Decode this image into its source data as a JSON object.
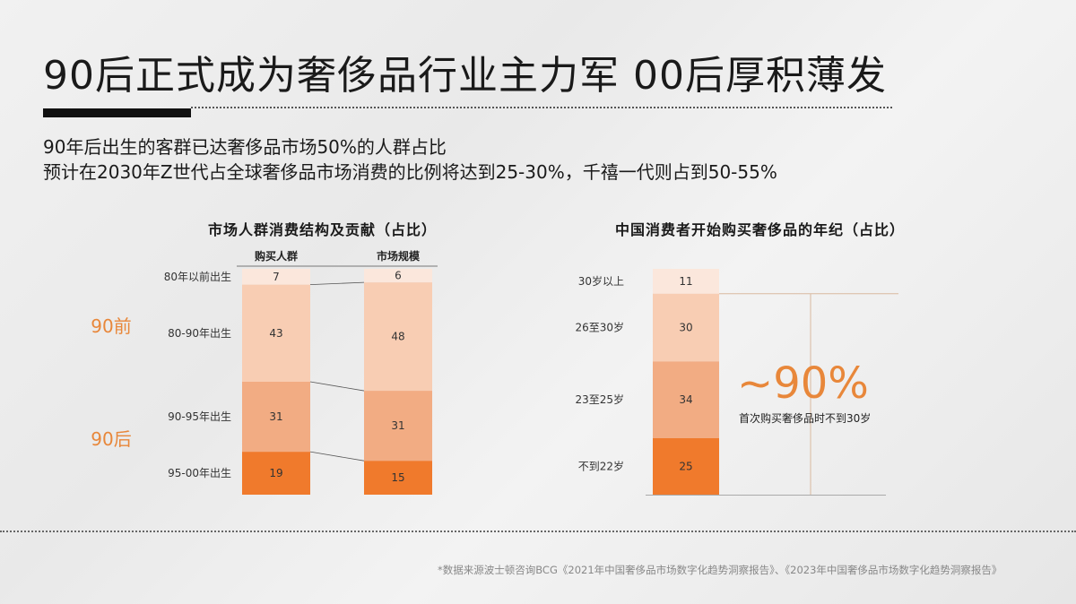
{
  "page": {
    "title": "90后正式成为奢侈品行业主力军  00后厚积薄发",
    "subtitle_line1": "90年后出生的客群已达奢侈品市场50%的人群占比",
    "subtitle_line2": "预计在2030年Z世代占全球奢侈品市场消费的比例将达到25-30%，千禧一代则占到50-55%",
    "source": "*数据来源波士顿咨询BCG《2021年中国奢侈品市场数字化趋势洞察报告》、《2023年中国奢侈品市场数字化趋势洞察报告》",
    "highlight_value": "~90%",
    "highlight_note": "首次购买奢侈品时不到30岁"
  },
  "colors": {
    "lightest": "#fbe7dc",
    "light": "#f8cdb3",
    "medium": "#f2ac83",
    "dark": "#f07a2c",
    "accent_text": "#e8873a"
  },
  "chart_data": [
    {
      "type": "bar",
      "stacked": true,
      "title": "市场人群消费结构及贡献（占比）",
      "categories": [
        "购买人群",
        "市场规模"
      ],
      "series": [
        {
          "name": "80年以前出生",
          "values": [
            7,
            6
          ]
        },
        {
          "name": "80-90年出生",
          "values": [
            43,
            48
          ]
        },
        {
          "name": "90-95年出生",
          "values": [
            31,
            31
          ]
        },
        {
          "name": "95-00年出生",
          "values": [
            19,
            15
          ]
        }
      ],
      "groups": [
        {
          "label": "90前",
          "series": [
            "80年以前出生",
            "80-90年出生"
          ]
        },
        {
          "label": "90后",
          "series": [
            "90-95年出生",
            "95-00年出生"
          ]
        }
      ],
      "ylim": [
        0,
        100
      ]
    },
    {
      "type": "bar",
      "stacked": true,
      "title": "中国消费者开始购买奢侈品的年纪（占比）",
      "categories": [
        ""
      ],
      "series": [
        {
          "name": "30岁以上",
          "values": [
            11
          ]
        },
        {
          "name": "26至30岁",
          "values": [
            30
          ]
        },
        {
          "name": "23至25岁",
          "values": [
            34
          ]
        },
        {
          "name": "不到22岁",
          "values": [
            25
          ]
        }
      ],
      "ylim": [
        0,
        100
      ]
    }
  ]
}
